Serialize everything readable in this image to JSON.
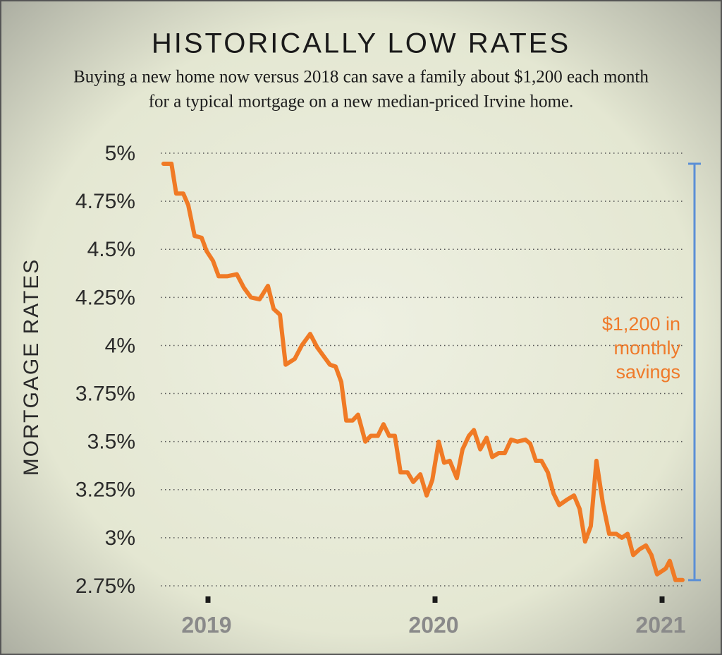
{
  "chart_data": {
    "type": "line",
    "title": "HISTORICALLY LOW RATES",
    "subtitle": [
      "Buying a new home now versus 2018 can save a family about $1,200 each month",
      "for a typical mortgage on a new median-priced Irvine home."
    ],
    "y_label": "MORTGAGE RATES",
    "annotation": [
      "$1,200 in",
      "monthly",
      "savings"
    ],
    "color": "#f07a25",
    "bracket_color": "#5b8fd6",
    "grid": true,
    "xlim": [
      2018.75,
      2021.125
    ],
    "xticks": [
      2019,
      2020,
      2021
    ],
    "ylim": [
      2.75,
      5
    ],
    "yticks": [
      {
        "value": 5,
        "label": "5%"
      },
      {
        "value": 4.75,
        "label": "4.75%"
      },
      {
        "value": 4.5,
        "label": "4.5%"
      },
      {
        "value": 4.25,
        "label": "4.25%"
      },
      {
        "value": 4,
        "label": "4%"
      },
      {
        "value": 3.75,
        "label": "3.75%"
      },
      {
        "value": 3.5,
        "label": "3.5%"
      },
      {
        "value": 3.25,
        "label": "3.25%"
      },
      {
        "value": 3,
        "label": "3%"
      },
      {
        "value": 2.75,
        "label": "2.75%"
      }
    ],
    "x": [
      2018.804,
      2018.839,
      2018.86,
      2018.891,
      2018.913,
      2018.941,
      2018.972,
      2018.994,
      2019.022,
      2019.047,
      2019.084,
      2019.127,
      2019.158,
      2019.189,
      2019.227,
      2019.264,
      2019.289,
      2019.317,
      2019.342,
      2019.382,
      2019.413,
      2019.45,
      2019.481,
      2019.506,
      2019.537,
      2019.562,
      2019.587,
      2019.609,
      2019.637,
      2019.661,
      2019.693,
      2019.717,
      2019.748,
      2019.773,
      2019.798,
      2019.823,
      2019.848,
      2019.879,
      2019.904,
      2019.935,
      2019.963,
      2019.988,
      2020.016,
      2020.04,
      2020.065,
      2020.096,
      2020.121,
      2020.149,
      2020.171,
      2020.199,
      2020.227,
      2020.252,
      2020.28,
      2020.307,
      2020.335,
      2020.363,
      2020.398,
      2020.419,
      2020.444,
      2020.469,
      2020.497,
      2020.522,
      2020.547,
      2020.584,
      2020.612,
      2020.637,
      2020.661,
      2020.686,
      2020.711,
      2020.739,
      2020.767,
      2020.798,
      2020.823,
      2020.848,
      2020.873,
      2020.901,
      2020.929,
      2020.953,
      2020.978,
      2021.016,
      2021.034,
      2021.059,
      2021.09
    ],
    "values": [
      4.945,
      4.945,
      4.79,
      4.79,
      4.73,
      4.57,
      4.56,
      4.49,
      4.44,
      4.36,
      4.36,
      4.37,
      4.3,
      4.25,
      4.24,
      4.31,
      4.19,
      4.16,
      3.9,
      3.93,
      4.0,
      4.06,
      3.99,
      3.95,
      3.9,
      3.89,
      3.81,
      3.61,
      3.61,
      3.64,
      3.5,
      3.53,
      3.53,
      3.59,
      3.53,
      3.53,
      3.34,
      3.34,
      3.29,
      3.33,
      3.22,
      3.3,
      3.5,
      3.39,
      3.4,
      3.31,
      3.46,
      3.53,
      3.56,
      3.46,
      3.52,
      3.42,
      3.44,
      3.44,
      3.51,
      3.5,
      3.51,
      3.49,
      3.4,
      3.4,
      3.34,
      3.23,
      3.17,
      3.2,
      3.22,
      3.15,
      2.98,
      3.06,
      3.4,
      3.18,
      3.02,
      3.02,
      3.0,
      3.02,
      2.91,
      2.94,
      2.96,
      2.91,
      2.81,
      2.84,
      2.88,
      2.78,
      2.78
    ]
  }
}
